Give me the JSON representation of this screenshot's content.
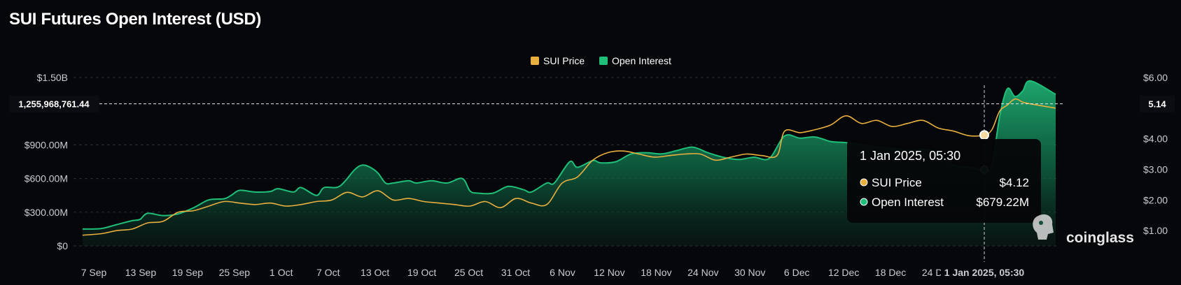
{
  "header": {
    "title": "SUI Futures Open Interest (USD)"
  },
  "brand": {
    "name": "coinglass"
  },
  "colors": {
    "price": "#e9b03f",
    "oi": "#1fbf7a",
    "background": "#06070b",
    "grid": "#2a2d35"
  },
  "chart_data": {
    "type": "area",
    "title": "SUI Futures Open Interest (USD)",
    "legend": {
      "position": "top-center",
      "items": [
        "SUI Price",
        "Open Interest"
      ]
    },
    "x_tick_labels": [
      "7 Sep",
      "13 Sep",
      "19 Sep",
      "25 Sep",
      "1 Oct",
      "7 Oct",
      "13 Oct",
      "19 Oct",
      "25 Oct",
      "31 Oct",
      "6 Nov",
      "12 Nov",
      "18 Nov",
      "24 Nov",
      "30 Nov",
      "6 Dec",
      "12 Dec",
      "18 Dec",
      "24 Dec",
      "1 Jan 2025, 05:30"
    ],
    "y_left": {
      "range": [
        0,
        1500000000
      ],
      "tick_labels": [
        "$0",
        "$300.00M",
        "$600.00M",
        "$900.00M",
        "$1.50B"
      ],
      "tick_values": [
        0,
        300000000,
        600000000,
        900000000,
        1500000000
      ]
    },
    "y_right": {
      "range": [
        0.5,
        6.0
      ],
      "tick_labels": [
        "$1.00",
        "$2.00",
        "$3.00",
        "$4.00",
        "$6.00"
      ],
      "tick_values": [
        1,
        2,
        3,
        4,
        6
      ]
    },
    "grid": true,
    "series": [
      {
        "name": "Open Interest",
        "axis": "left",
        "unit": "USD",
        "x": [
          "2024-09-06",
          "2024-09-08",
          "2024-09-10",
          "2024-09-12",
          "2024-09-13",
          "2024-09-14",
          "2024-09-16",
          "2024-09-18",
          "2024-09-20",
          "2024-09-22",
          "2024-09-24",
          "2024-09-25",
          "2024-09-26",
          "2024-09-28",
          "2024-09-30",
          "2024-10-01",
          "2024-10-03",
          "2024-10-04",
          "2024-10-06",
          "2024-10-07",
          "2024-10-09",
          "2024-10-11",
          "2024-10-12",
          "2024-10-13",
          "2024-10-14",
          "2024-10-15",
          "2024-10-16",
          "2024-10-18",
          "2024-10-19",
          "2024-10-21",
          "2024-10-23",
          "2024-10-25",
          "2024-10-26",
          "2024-10-27",
          "2024-10-29",
          "2024-10-31",
          "2024-11-02",
          "2024-11-03",
          "2024-11-05",
          "2024-11-06",
          "2024-11-08",
          "2024-11-09",
          "2024-11-11",
          "2024-11-12",
          "2024-11-14",
          "2024-11-16",
          "2024-11-18",
          "2024-11-20",
          "2024-11-22",
          "2024-11-24",
          "2024-11-26",
          "2024-11-28",
          "2024-11-30",
          "2024-12-02",
          "2024-12-04",
          "2024-12-06",
          "2024-12-08",
          "2024-12-10",
          "2024-12-12",
          "2024-12-14",
          "2024-12-16",
          "2024-12-18",
          "2024-12-20",
          "2024-12-22",
          "2024-12-24",
          "2024-12-26",
          "2024-12-28",
          "2024-12-30",
          "2025-01-01",
          "2025-01-02",
          "2025-01-03",
          "2025-01-04",
          "2025-01-05",
          "2025-01-06",
          "2025-01-07",
          "2025-01-08"
        ],
        "values": [
          150000000,
          155000000,
          190000000,
          225000000,
          235000000,
          290000000,
          270000000,
          285000000,
          340000000,
          410000000,
          420000000,
          455000000,
          495000000,
          480000000,
          485000000,
          510000000,
          480000000,
          520000000,
          450000000,
          520000000,
          530000000,
          680000000,
          720000000,
          700000000,
          650000000,
          560000000,
          560000000,
          580000000,
          560000000,
          580000000,
          560000000,
          600000000,
          490000000,
          470000000,
          470000000,
          530000000,
          500000000,
          480000000,
          560000000,
          560000000,
          750000000,
          700000000,
          760000000,
          740000000,
          750000000,
          820000000,
          830000000,
          820000000,
          850000000,
          880000000,
          830000000,
          790000000,
          770000000,
          790000000,
          780000000,
          980000000,
          960000000,
          970000000,
          930000000,
          920000000,
          900000000,
          880000000,
          870000000,
          850000000,
          860000000,
          830000000,
          720000000,
          700000000,
          679220000,
          720000000,
          1150000000,
          1400000000,
          1330000000,
          1380000000,
          1470000000,
          1350000000
        ]
      },
      {
        "name": "SUI Price",
        "axis": "right",
        "unit": "USD",
        "x": [
          "2024-09-06",
          "2024-09-08",
          "2024-09-10",
          "2024-09-12",
          "2024-09-14",
          "2024-09-16",
          "2024-09-18",
          "2024-09-20",
          "2024-09-22",
          "2024-09-24",
          "2024-09-26",
          "2024-09-28",
          "2024-09-30",
          "2024-10-02",
          "2024-10-04",
          "2024-10-06",
          "2024-10-08",
          "2024-10-10",
          "2024-10-12",
          "2024-10-14",
          "2024-10-16",
          "2024-10-18",
          "2024-10-20",
          "2024-10-22",
          "2024-10-24",
          "2024-10-26",
          "2024-10-28",
          "2024-10-30",
          "2024-11-01",
          "2024-11-03",
          "2024-11-05",
          "2024-11-07",
          "2024-11-09",
          "2024-11-11",
          "2024-11-13",
          "2024-11-15",
          "2024-11-17",
          "2024-11-19",
          "2024-11-21",
          "2024-11-23",
          "2024-11-25",
          "2024-11-27",
          "2024-11-29",
          "2024-12-01",
          "2024-12-03",
          "2024-12-05",
          "2024-12-06",
          "2024-12-08",
          "2024-12-10",
          "2024-12-12",
          "2024-12-14",
          "2024-12-16",
          "2024-12-18",
          "2024-12-20",
          "2024-12-22",
          "2024-12-24",
          "2024-12-26",
          "2024-12-28",
          "2024-12-30",
          "2025-01-01",
          "2025-01-02",
          "2025-01-03",
          "2025-01-04",
          "2025-01-05",
          "2025-01-06",
          "2025-01-07",
          "2025-01-08"
        ],
        "values": [
          0.85,
          0.9,
          1.0,
          1.05,
          1.25,
          1.3,
          1.6,
          1.65,
          1.8,
          1.95,
          1.9,
          1.85,
          1.9,
          1.8,
          1.85,
          1.95,
          2.0,
          2.25,
          2.1,
          2.3,
          2.0,
          2.05,
          1.95,
          1.9,
          1.85,
          1.8,
          1.95,
          1.75,
          2.05,
          1.9,
          1.85,
          2.55,
          2.75,
          3.3,
          3.55,
          3.6,
          3.5,
          3.4,
          3.45,
          3.5,
          3.5,
          3.3,
          3.4,
          3.5,
          3.45,
          3.45,
          4.25,
          4.2,
          4.3,
          4.45,
          4.75,
          4.5,
          4.6,
          4.4,
          4.5,
          4.6,
          4.35,
          4.25,
          4.1,
          4.12,
          4.3,
          4.9,
          5.1,
          5.3,
          5.2,
          5.14,
          5.0
        ]
      }
    ],
    "tooltip": {
      "title": "1 Jan 2025, 05:30",
      "rows": [
        {
          "label": "SUI Price",
          "value": "$4.12"
        },
        {
          "label": "Open Interest",
          "value": "$679.22M"
        }
      ]
    },
    "crosshair": {
      "left_value": "1,255,968,761.44",
      "right_value": "5.14"
    }
  }
}
